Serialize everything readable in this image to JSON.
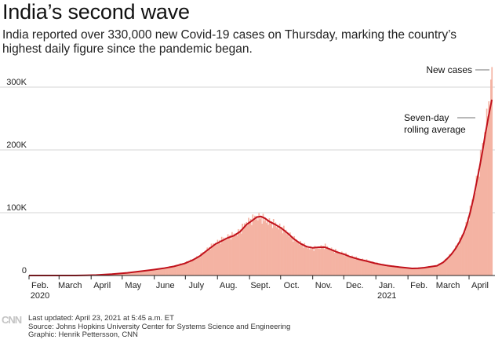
{
  "header": {
    "title": "India’s second wave",
    "subtitle": "India reported over 330,000 new Covid-19 cases on Thursday, marking the country’s highest daily figure since the pandemic began."
  },
  "chart_data": {
    "type": "bar",
    "title": "India’s second wave",
    "xlabel": "",
    "ylabel": "",
    "ylim": [
      0,
      330000
    ],
    "xlim": [
      0,
      450
    ],
    "x_unit": "days since Feb. 1, 2020",
    "y_ticks": [
      {
        "value": 0,
        "label": "0"
      },
      {
        "value": 100000,
        "label": "100K"
      },
      {
        "value": 200000,
        "label": "200K"
      },
      {
        "value": 300000,
        "label": "300K"
      }
    ],
    "x_ticks": [
      {
        "day": 0,
        "label": "Feb."
      },
      {
        "day": 29,
        "label": "March"
      },
      {
        "day": 60,
        "label": "April"
      },
      {
        "day": 90,
        "label": "May"
      },
      {
        "day": 121,
        "label": "June"
      },
      {
        "day": 151,
        "label": "July"
      },
      {
        "day": 182,
        "label": "Aug."
      },
      {
        "day": 213,
        "label": "Sept."
      },
      {
        "day": 243,
        "label": "Oct."
      },
      {
        "day": 274,
        "label": "Nov."
      },
      {
        "day": 304,
        "label": "Dec."
      },
      {
        "day": 335,
        "label": "Jan."
      },
      {
        "day": 366,
        "label": "Feb."
      },
      {
        "day": 394,
        "label": "March"
      },
      {
        "day": 425,
        "label": "April"
      }
    ],
    "year_labels": [
      {
        "day": 0,
        "label": "2020"
      },
      {
        "day": 335,
        "label": "2021"
      }
    ],
    "series": [
      {
        "name": "New cases",
        "style": "bars",
        "color": "#f4b3a3",
        "points": [
          [
            0,
            0
          ],
          [
            30,
            50
          ],
          [
            45,
            100
          ],
          [
            55,
            500
          ],
          [
            65,
            1000
          ],
          [
            80,
            2500
          ],
          [
            95,
            4500
          ],
          [
            110,
            7500
          ],
          [
            120,
            9500
          ],
          [
            130,
            12000
          ],
          [
            140,
            15000
          ],
          [
            150,
            20000
          ],
          [
            158,
            25000
          ],
          [
            165,
            32000
          ],
          [
            172,
            42000
          ],
          [
            180,
            52000
          ],
          [
            186,
            57000
          ],
          [
            192,
            62000
          ],
          [
            198,
            65000
          ],
          [
            204,
            72000
          ],
          [
            210,
            85000
          ],
          [
            216,
            90000
          ],
          [
            220,
            95000
          ],
          [
            226,
            91000
          ],
          [
            232,
            86000
          ],
          [
            238,
            82000
          ],
          [
            244,
            76000
          ],
          [
            250,
            68000
          ],
          [
            256,
            58000
          ],
          [
            262,
            52000
          ],
          [
            268,
            46000
          ],
          [
            274,
            43000
          ],
          [
            280,
            45000
          ],
          [
            286,
            47000
          ],
          [
            292,
            42000
          ],
          [
            298,
            38000
          ],
          [
            304,
            35000
          ],
          [
            310,
            31000
          ],
          [
            318,
            27000
          ],
          [
            326,
            24000
          ],
          [
            334,
            20000
          ],
          [
            340,
            18000
          ],
          [
            346,
            16000
          ],
          [
            352,
            15000
          ],
          [
            358,
            13500
          ],
          [
            364,
            12500
          ],
          [
            370,
            11500
          ],
          [
            376,
            12000
          ],
          [
            382,
            13000
          ],
          [
            388,
            14500
          ],
          [
            394,
            16000
          ],
          [
            400,
            22000
          ],
          [
            404,
            28000
          ],
          [
            408,
            35000
          ],
          [
            412,
            45000
          ],
          [
            416,
            56000
          ],
          [
            420,
            70000
          ],
          [
            423,
            85000
          ],
          [
            426,
            103000
          ],
          [
            429,
            125000
          ],
          [
            432,
            150000
          ],
          [
            435,
            175000
          ],
          [
            438,
            205000
          ],
          [
            441,
            240000
          ],
          [
            444,
            272000
          ],
          [
            447,
            332000
          ]
        ]
      },
      {
        "name": "Seven-day rolling average",
        "style": "line",
        "color": "#c1121c",
        "points": [
          [
            0,
            0
          ],
          [
            30,
            20
          ],
          [
            45,
            80
          ],
          [
            55,
            300
          ],
          [
            65,
            800
          ],
          [
            80,
            2200
          ],
          [
            95,
            4200
          ],
          [
            110,
            7200
          ],
          [
            120,
            9200
          ],
          [
            130,
            11500
          ],
          [
            140,
            14500
          ],
          [
            150,
            19000
          ],
          [
            158,
            24500
          ],
          [
            165,
            31000
          ],
          [
            172,
            40000
          ],
          [
            180,
            50000
          ],
          [
            186,
            55000
          ],
          [
            192,
            60000
          ],
          [
            198,
            63500
          ],
          [
            204,
            70000
          ],
          [
            210,
            81000
          ],
          [
            216,
            88000
          ],
          [
            220,
            93000
          ],
          [
            224,
            94000
          ],
          [
            228,
            91000
          ],
          [
            232,
            86000
          ],
          [
            238,
            81000
          ],
          [
            244,
            75000
          ],
          [
            250,
            67000
          ],
          [
            256,
            58000
          ],
          [
            262,
            51000
          ],
          [
            268,
            46000
          ],
          [
            274,
            44000
          ],
          [
            280,
            45000
          ],
          [
            286,
            45000
          ],
          [
            292,
            41000
          ],
          [
            298,
            37000
          ],
          [
            304,
            34000
          ],
          [
            310,
            30000
          ],
          [
            318,
            26000
          ],
          [
            326,
            23000
          ],
          [
            334,
            19500
          ],
          [
            340,
            17500
          ],
          [
            346,
            15800
          ],
          [
            352,
            14500
          ],
          [
            358,
            13300
          ],
          [
            364,
            12300
          ],
          [
            370,
            11200
          ],
          [
            376,
            11500
          ],
          [
            382,
            12500
          ],
          [
            388,
            14000
          ],
          [
            394,
            15500
          ],
          [
            400,
            21000
          ],
          [
            404,
            27000
          ],
          [
            408,
            34000
          ],
          [
            412,
            43000
          ],
          [
            416,
            54000
          ],
          [
            420,
            68000
          ],
          [
            423,
            82000
          ],
          [
            426,
            100000
          ],
          [
            429,
            121000
          ],
          [
            432,
            146000
          ],
          [
            435,
            171000
          ],
          [
            438,
            198000
          ],
          [
            441,
            228000
          ],
          [
            444,
            255000
          ],
          [
            447,
            280000
          ]
        ]
      }
    ],
    "annotations": [
      {
        "text": "New cases",
        "series": "New cases"
      },
      {
        "lines": [
          "Seven-day",
          "rolling average"
        ],
        "series": "Seven-day rolling average"
      }
    ],
    "grid": true
  },
  "footer": {
    "logo_text": "CNN",
    "updated": "Last updated: April 23, 2021 at 5:45 a.m. ET",
    "source": "Source: Johns Hopkins University Center for Systems Science and Engineering",
    "graphic": "Graphic: Henrik Pettersson, CNN"
  }
}
